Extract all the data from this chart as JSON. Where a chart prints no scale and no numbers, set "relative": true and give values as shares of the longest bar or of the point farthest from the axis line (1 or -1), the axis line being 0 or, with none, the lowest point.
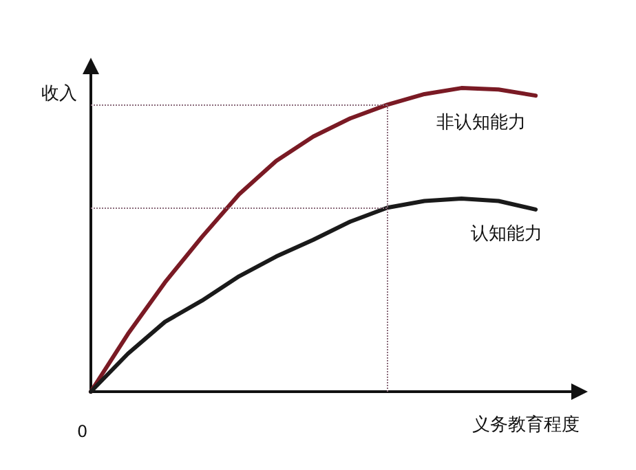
{
  "chart_data": {
    "type": "line",
    "relative": true,
    "xlabel": "义务教育程度",
    "ylabel": "收入",
    "grid": false,
    "legend": false,
    "marker": "none",
    "line_style": "solid",
    "annotations": [
      "0"
    ],
    "categories": [
      null,
      null,
      null,
      null,
      null,
      null,
      null,
      null,
      null,
      null,
      null,
      null,
      null,
      null
    ],
    "series": [
      {
        "name": "非认知能力",
        "color": "#7a1a24",
        "values": [
          0,
          0.19,
          0.36,
          0.51,
          0.65,
          0.76,
          0.84,
          0.9,
          0.945,
          0.98,
          1,
          0.995,
          0.975,
          null
        ]
      },
      {
        "name": "认知能力",
        "color": "#1a1a1a",
        "values": [
          0,
          0.125,
          0.23,
          0.3,
          0.38,
          0.445,
          0.5,
          0.56,
          0.606,
          0.628,
          0.636,
          0.628,
          0.6,
          null
        ]
      }
    ],
    "ref_lines": [
      {
        "axis": "y",
        "value": 0.945,
        "label": null,
        "color": "#8a6a7a",
        "line_style": "dotted"
      },
      {
        "axis": "y",
        "value": 0.606,
        "label": null,
        "color": "#8a6a7a",
        "line_style": "dotted"
      }
    ]
  }
}
